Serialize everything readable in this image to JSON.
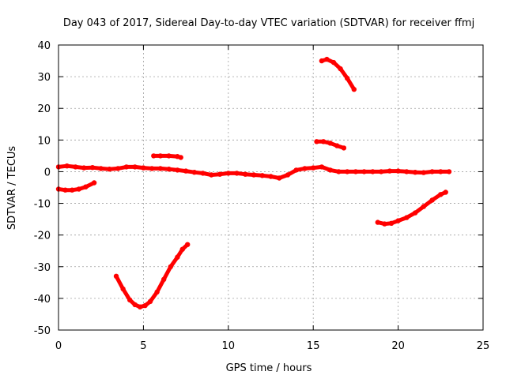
{
  "chart_data": {
    "type": "scatter",
    "title": "Day 043 of 2017, Sidereal Day-to-day VTEC variation (SDTVAR) for receiver ffmj",
    "xlabel": "GPS time / hours",
    "ylabel": "SDTVAR / TECUs",
    "xlim": [
      0,
      25
    ],
    "ylim": [
      -50,
      40
    ],
    "xticks": [
      0,
      5,
      10,
      15,
      20,
      25
    ],
    "yticks": [
      -50,
      -40,
      -30,
      -20,
      -10,
      0,
      10,
      20,
      30,
      40
    ],
    "grid": true,
    "legend": "none",
    "series_color": "#ff0000",
    "series": [
      {
        "x": [
          0,
          0.5,
          1,
          1.5,
          2,
          2.5,
          3,
          3.5,
          4,
          4.5,
          5,
          5.5,
          6,
          6.5,
          7,
          7.5,
          8,
          8.5,
          9,
          9.5,
          10,
          10.5,
          11,
          11.5,
          12,
          12.5,
          13,
          13.5,
          14,
          14.5,
          15,
          15.5,
          16,
          16.5,
          17,
          17.5,
          18,
          18.5,
          19,
          19.5,
          20,
          20.5,
          21,
          21.5,
          22,
          22.5,
          23
        ],
        "y": [
          1.5,
          1.8,
          1.5,
          1.2,
          1.3,
          1,
          0.8,
          1,
          1.5,
          1.5,
          1.2,
          1,
          1,
          0.8,
          0.5,
          0.2,
          -0.2,
          -0.5,
          -1,
          -0.8,
          -0.5,
          -0.5,
          -0.8,
          -1,
          -1.2,
          -1.5,
          -2,
          -1,
          0.5,
          1,
          1.2,
          1.5,
          0.5,
          0,
          0,
          0,
          0,
          0,
          0,
          0.2,
          0.2,
          0,
          -0.2,
          -0.3,
          0,
          0,
          0
        ]
      },
      {
        "x": [
          0,
          0.4,
          0.8,
          1.2,
          1.6,
          2.1
        ],
        "y": [
          -5.5,
          -5.8,
          -5.8,
          -5.5,
          -4.8,
          -3.5
        ]
      },
      {
        "x": [
          3.4,
          3.8,
          4.2,
          4.5,
          4.8,
          5.1,
          5.4,
          5.8,
          6.2,
          6.6,
          7,
          7.3,
          7.6
        ],
        "y": [
          -33,
          -37,
          -40.5,
          -42,
          -42.7,
          -42.3,
          -41,
          -38,
          -34,
          -30,
          -27,
          -24.5,
          -23
        ]
      },
      {
        "x": [
          5.6,
          6,
          6.5,
          7,
          7.2
        ],
        "y": [
          5,
          5,
          5,
          4.8,
          4.5
        ]
      },
      {
        "x": [
          15.2,
          15.6,
          16,
          16.4,
          16.8
        ],
        "y": [
          9.5,
          9.5,
          9,
          8.2,
          7.5
        ]
      },
      {
        "x": [
          15.5,
          15.8,
          16.2,
          16.6,
          17,
          17.4
        ],
        "y": [
          35,
          35.5,
          34.5,
          32.5,
          29.5,
          26
        ]
      },
      {
        "x": [
          18.8,
          19.2,
          19.6,
          20,
          20.5,
          21,
          21.5,
          22,
          22.5,
          22.8
        ],
        "y": [
          -16,
          -16.5,
          -16.3,
          -15.5,
          -14.5,
          -13,
          -11,
          -9,
          -7.2,
          -6.5
        ]
      }
    ]
  }
}
